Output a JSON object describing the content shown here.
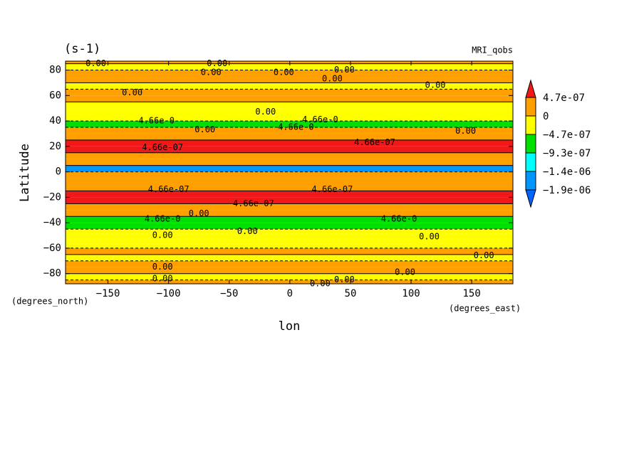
{
  "chart_data": {
    "type": "contour",
    "title": "(s-1)",
    "subtitle": "MRI_qobs",
    "x_label": "lon",
    "y_label": "Latitude",
    "x_units": "(degrees_east)",
    "y_units": "(degrees_north)",
    "xlim": [
      -185,
      184
    ],
    "ylim": [
      -88,
      87
    ],
    "xticks": [
      {
        "value": -150,
        "label": "−150"
      },
      {
        "value": -100,
        "label": "−100"
      },
      {
        "value": -50,
        "label": "−50"
      },
      0,
      50,
      100,
      150
    ],
    "yticks": [
      {
        "value": -80,
        "label": "−80"
      },
      {
        "value": -60,
        "label": "−60"
      },
      {
        "value": -40,
        "label": "−40"
      },
      {
        "value": -20,
        "label": "−20"
      },
      0,
      20,
      40,
      60,
      80
    ],
    "lat_bins": [
      -90,
      -85,
      -80,
      -75,
      -70,
      -65,
      -60,
      -55,
      -50,
      -45,
      -40,
      -35,
      -30,
      -25,
      -20,
      -15,
      -10,
      -5,
      0,
      5,
      10,
      15,
      20,
      25,
      30,
      35,
      40,
      45,
      50,
      55,
      60,
      65,
      70,
      75,
      80,
      85,
      90
    ],
    "values": [
      2e-07,
      -2e-07,
      2e-07,
      2e-07,
      -1e-07,
      2e-07,
      -2e-07,
      -2e-07,
      -3e-07,
      -6e-07,
      -6e-07,
      2e-07,
      3e-07,
      6e-07,
      6e-07,
      3e-07,
      2e-07,
      1e-07,
      -1.6e-06,
      2e-07,
      3e-07,
      6e-07,
      5e-07,
      3e-07,
      2e-07,
      -6e-07,
      -2e-07,
      -2e-07,
      -1e-07,
      2e-07,
      2e-07,
      -1e-07,
      2e-07,
      2e-07,
      -1e-07,
      2e-07
    ],
    "levels": [
      {
        "value": 4.7e-07,
        "label": "4.7e-07"
      },
      0,
      {
        "value": -4.7e-07,
        "label": "−4.7e-07"
      },
      {
        "value": -9.3e-07,
        "label": "−9.3e-07"
      },
      {
        "value": -1.4e-06,
        "label": "−1.4e-06"
      },
      {
        "value": -1.9e-06,
        "label": "−1.9e-06"
      }
    ],
    "colors": [
      "#f01818",
      "#ffa000",
      "#ffff00",
      "#00e000",
      "#00ffff",
      "#0096ff",
      "#0064ff"
    ],
    "annotations": [
      {
        "text": "0.00",
        "x": -160,
        "y": 85
      },
      {
        "text": "0.00",
        "x": -60,
        "y": 85
      },
      {
        "text": "0.00",
        "x": -65,
        "y": 78
      },
      {
        "text": "0.00",
        "x": -5,
        "y": 78
      },
      {
        "text": "0.00",
        "x": 45,
        "y": 80
      },
      {
        "text": "0.00",
        "x": 35,
        "y": 73
      },
      {
        "text": "0.00",
        "x": -130,
        "y": 62
      },
      {
        "text": "0.00",
        "x": 120,
        "y": 68
      },
      {
        "text": "0.00",
        "x": -20,
        "y": 47
      },
      {
        "text": "4.66e-0",
        "x": -110,
        "y": 40
      },
      {
        "text": "4.66e-0",
        "x": 25,
        "y": 41
      },
      {
        "text": "4.66e-0",
        "x": 5,
        "y": 35
      },
      {
        "text": "0.00",
        "x": -70,
        "y": 33
      },
      {
        "text": "0.00",
        "x": 145,
        "y": 32
      },
      {
        "text": "4.66e-07",
        "x": -105,
        "y": 19
      },
      {
        "text": "4.66e-07",
        "x": 70,
        "y": 23
      },
      {
        "text": "4.66e-07",
        "x": -100,
        "y": -14
      },
      {
        "text": "4.66e-07",
        "x": 35,
        "y": -14
      },
      {
        "text": "4.66e-07",
        "x": -30,
        "y": -25
      },
      {
        "text": "0.00",
        "x": -75,
        "y": -33
      },
      {
        "text": "4.66e-0",
        "x": -105,
        "y": -37
      },
      {
        "text": "4.66e-0",
        "x": 90,
        "y": -37
      },
      {
        "text": "0.00",
        "x": -105,
        "y": -50
      },
      {
        "text": "0.00",
        "x": -35,
        "y": -47
      },
      {
        "text": "0.00",
        "x": 115,
        "y": -51
      },
      {
        "text": "0.00",
        "x": 160,
        "y": -66
      },
      {
        "text": "0.00",
        "x": -105,
        "y": -75
      },
      {
        "text": "0.00",
        "x": -105,
        "y": -84
      },
      {
        "text": "0.00",
        "x": 95,
        "y": -79
      },
      {
        "text": "0.00",
        "x": 45,
        "y": -85
      },
      {
        "text": "0.00",
        "x": 25,
        "y": -88
      }
    ]
  }
}
